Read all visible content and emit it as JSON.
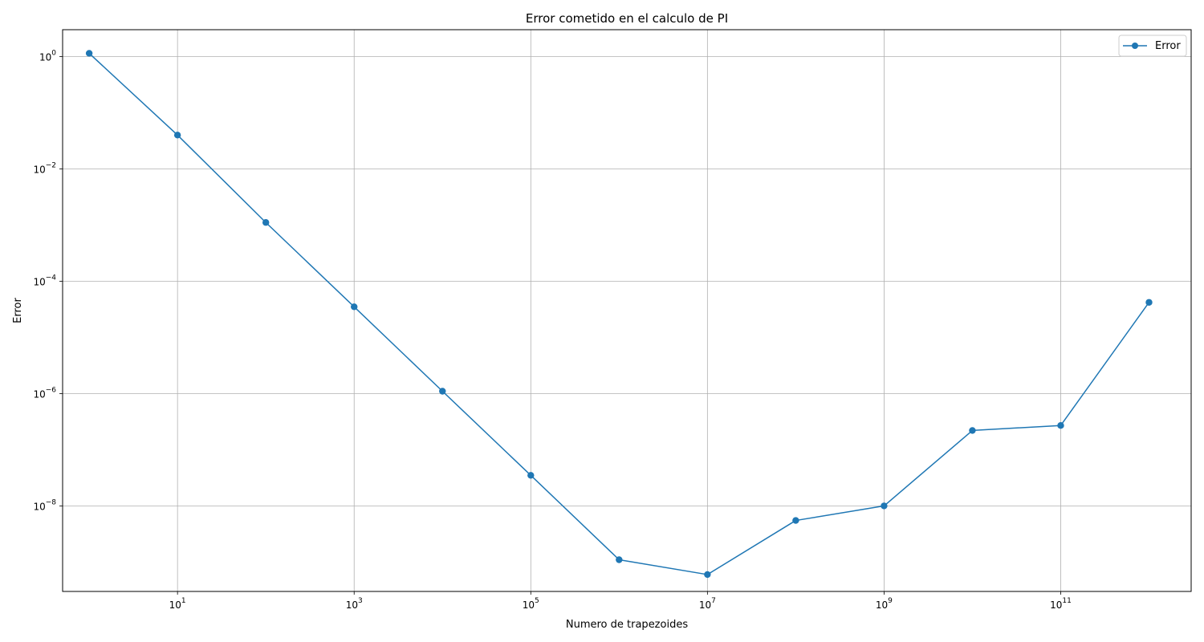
{
  "chart_data": {
    "type": "line",
    "title": "Error cometido en el calculo de PI",
    "xlabel": "Numero de trapezoides",
    "ylabel": "Error",
    "xscale": "log",
    "yscale": "log",
    "xlim": [
      0.5,
      3000000000000.0
    ],
    "ylim": [
      3e-10,
      3.0
    ],
    "grid": true,
    "legend_position": "top-right",
    "color": "#1f77b4",
    "x_ticks": [
      {
        "value": 10,
        "base": "10",
        "exp": "1"
      },
      {
        "value": 1000,
        "base": "10",
        "exp": "3"
      },
      {
        "value": 100000,
        "base": "10",
        "exp": "5"
      },
      {
        "value": 10000000,
        "base": "10",
        "exp": "7"
      },
      {
        "value": 1000000000,
        "base": "10",
        "exp": "9"
      },
      {
        "value": 100000000000,
        "base": "10",
        "exp": "11"
      }
    ],
    "y_ticks": [
      {
        "value": 1,
        "base": "10",
        "exp": "0"
      },
      {
        "value": 0.01,
        "base": "10",
        "exp": "−2"
      },
      {
        "value": 0.0001,
        "base": "10",
        "exp": "−4"
      },
      {
        "value": 1e-06,
        "base": "10",
        "exp": "−6"
      },
      {
        "value": 1e-08,
        "base": "10",
        "exp": "−8"
      }
    ],
    "series": [
      {
        "name": "Error",
        "x": [
          1,
          10,
          100,
          1000,
          10000,
          100000,
          1000000,
          10000000,
          100000000,
          1000000000,
          10000000000,
          100000000000,
          1000000000000
        ],
        "y": [
          1.14,
          0.0399,
          0.00111,
          3.5e-05,
          1.1e-06,
          3.5e-08,
          1.1e-09,
          6e-10,
          5.5e-09,
          1e-08,
          2.2e-07,
          2.7e-07,
          4.2e-05
        ]
      }
    ]
  }
}
